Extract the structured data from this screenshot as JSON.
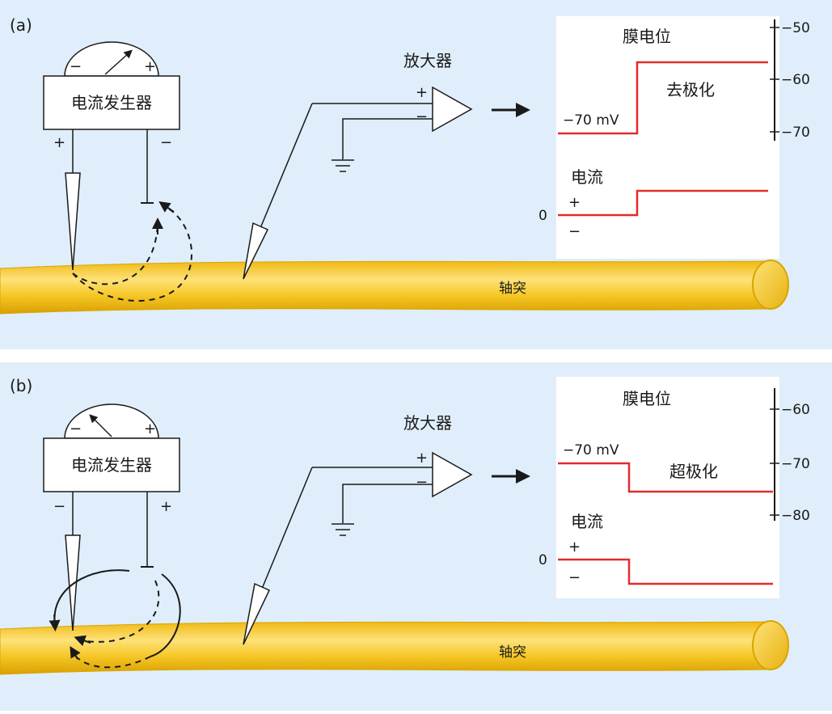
{
  "panels": [
    {
      "id": "a",
      "label": "(a)",
      "generator": {
        "label": "电流发生器",
        "meter_minus": "−",
        "meter_plus": "+",
        "left_sign": "+",
        "right_sign": "−"
      },
      "amplifier": {
        "label": "放大器",
        "plus": "+",
        "minus": "−"
      },
      "membrane": {
        "title": "膜电位",
        "resting_label": "−70 mV",
        "change_label": "去极化",
        "ticks": [
          "−50",
          "−60",
          "−70"
        ]
      },
      "current": {
        "title": "电流",
        "zero": "0",
        "plus": "+",
        "minus": "−"
      },
      "axon_label": "轴突"
    },
    {
      "id": "b",
      "label": "(b)",
      "generator": {
        "label": "电流发生器",
        "meter_minus": "−",
        "meter_plus": "+",
        "left_sign": "−",
        "right_sign": "+"
      },
      "amplifier": {
        "label": "放大器",
        "plus": "+",
        "minus": "−"
      },
      "membrane": {
        "title": "膜电位",
        "resting_label": "−70 mV",
        "change_label": "超极化",
        "ticks": [
          "−60",
          "−70",
          "−80"
        ]
      },
      "current": {
        "title": "电流",
        "zero": "0",
        "plus": "+",
        "minus": "−"
      },
      "axon_label": "轴突"
    }
  ],
  "colors": {
    "background": "#dfeefa",
    "trace": "#e32b2b",
    "axon_fill": "#f2c21a",
    "axon_highlight": "#fde27a",
    "axon_edge": "#d9a500",
    "line": "#1a1a1a"
  }
}
